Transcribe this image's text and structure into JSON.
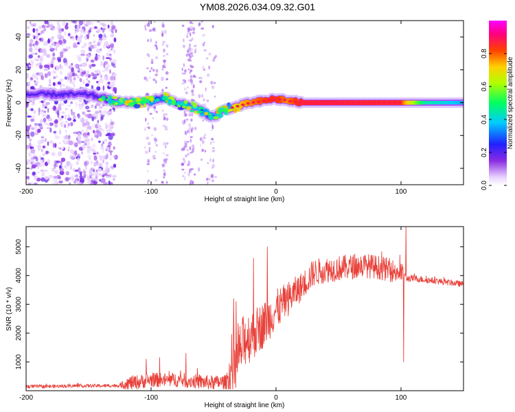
{
  "title": "YM08.2026.034.09.32.G01",
  "colors": {
    "snr_line": "#e8413a",
    "spectro_core": "#ff2a3a",
    "spectro_halo": "#a24cff",
    "background": "#ffffff",
    "frame": "#000000"
  },
  "chart_data": [
    {
      "type": "heatmap",
      "name": "spectrogram",
      "xlabel": "Height of straight line (km)",
      "ylabel": "Frequency (Hz)",
      "xlim": [
        -200,
        150
      ],
      "ylim": [
        -50,
        50
      ],
      "xticks": [
        -200,
        -100,
        0,
        100
      ],
      "yticks": [
        -40,
        -20,
        0,
        20,
        40
      ],
      "colorbar": {
        "label": "Normalized spectral amplitude",
        "range": [
          0.0,
          1.0
        ],
        "ticks": [
          "0.0",
          "0.2",
          "0.4",
          "0.6",
          "0.8"
        ],
        "colormap": "rainbow"
      },
      "ridge": {
        "x": [
          -200,
          -180,
          -160,
          -150,
          -140,
          -130,
          -120,
          -110,
          -100,
          -95,
          -90,
          -85,
          -80,
          -75,
          -70,
          -65,
          -60,
          -55,
          -50,
          -45,
          -40,
          -35,
          -30,
          -20,
          -10,
          -5,
          0,
          5,
          10,
          20,
          40,
          60,
          80,
          100,
          120,
          150
        ],
        "y": [
          5,
          5,
          5,
          5,
          3,
          1,
          0,
          0,
          1,
          2,
          3,
          2,
          0,
          -1,
          -2,
          -3,
          -5,
          -7,
          -9,
          -6,
          -4,
          -3,
          -2,
          0,
          1,
          2,
          2,
          2,
          1,
          0,
          0,
          0,
          0,
          0,
          0,
          0
        ],
        "amplitude": [
          0.05,
          0.06,
          0.07,
          0.08,
          0.2,
          0.3,
          0.5,
          0.55,
          0.5,
          0.4,
          0.35,
          0.45,
          0.55,
          0.5,
          0.45,
          0.45,
          0.4,
          0.35,
          0.3,
          0.45,
          0.6,
          0.7,
          0.8,
          0.85,
          0.9,
          0.92,
          0.95,
          0.9,
          0.85,
          0.95,
          0.97,
          0.96,
          0.95,
          0.95,
          0.5,
          0.4
        ]
      },
      "noise_region_x": [
        -200,
        -130
      ]
    },
    {
      "type": "line",
      "name": "snr",
      "xlabel": "Height of straight line (km)",
      "ylabel": "SNR (10 * v/v)",
      "xlim": [
        -200,
        150
      ],
      "ylim": [
        0,
        5700
      ],
      "xticks": [
        -200,
        -100,
        0,
        100
      ],
      "yticks": [
        1000,
        2000,
        3000,
        4000,
        5000
      ],
      "envelope": {
        "x": [
          -200,
          -180,
          -160,
          -140,
          -125,
          -120,
          -110,
          -100,
          -90,
          -80,
          -70,
          -60,
          -50,
          -40,
          -35,
          -30,
          -25,
          -20,
          -10,
          0,
          10,
          20,
          30,
          40,
          50,
          60,
          70,
          80,
          90,
          100,
          103,
          105,
          110,
          120,
          130,
          140,
          150
        ],
        "y": [
          150,
          150,
          170,
          170,
          180,
          250,
          300,
          380,
          360,
          380,
          350,
          300,
          280,
          300,
          700,
          1200,
          1800,
          1900,
          2300,
          2800,
          3200,
          3600,
          4100,
          4200,
          4250,
          4300,
          4350,
          4300,
          4200,
          4100,
          4000,
          3900,
          3900,
          3850,
          3800,
          3750,
          3700
        ]
      },
      "noise_amplitude": {
        "x": [
          -200,
          -125,
          -120,
          -40,
          -35,
          -20,
          0,
          20,
          40,
          100,
          105,
          150
        ],
        "y": [
          60,
          60,
          250,
          250,
          1100,
          900,
          700,
          500,
          450,
          400,
          120,
          100
        ]
      },
      "spikes": [
        {
          "x": -104,
          "y": 1100
        },
        {
          "x": -93,
          "y": 1150
        },
        {
          "x": -72,
          "y": 1300
        },
        {
          "x": -34,
          "y": 3200
        },
        {
          "x": -18,
          "y": 4600
        },
        {
          "x": -7,
          "y": 5000
        },
        {
          "x": 102,
          "y": 1000
        },
        {
          "x": 104,
          "y": 5700
        }
      ]
    }
  ]
}
